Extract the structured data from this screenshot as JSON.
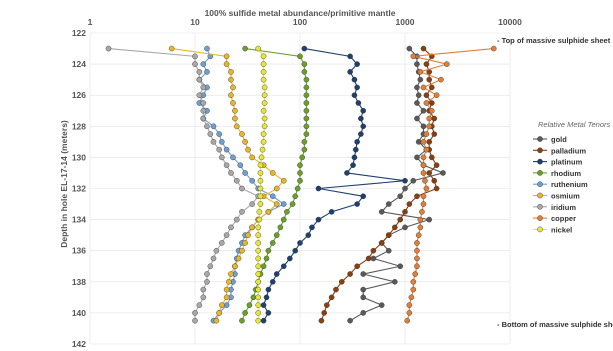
{
  "chart_data": {
    "type": "scatter",
    "title": "100% sulfide metal abundance/primitive mantle",
    "ylabel": "Depth in hole EL-17-14 (meters)",
    "xlabel": "",
    "xscale": "log",
    "xlim": [
      1,
      10000
    ],
    "ylim": [
      142,
      122
    ],
    "x_ticks": [
      "1",
      "10",
      "100",
      "1000",
      "10000"
    ],
    "y_ticks": [
      "122",
      "124",
      "126",
      "128",
      "130",
      "132",
      "134",
      "136",
      "138",
      "140",
      "142"
    ],
    "legend_title": "Relative Metal Tenors",
    "legend_position": "right",
    "annotations": {
      "top": "- Top of massive sulphide sheet",
      "bottom": "- Bottom of massive sulphide sheet"
    },
    "depths": [
      123,
      123.5,
      124,
      124.5,
      125,
      125.5,
      126,
      126.5,
      127,
      127.5,
      128,
      128.5,
      129,
      129.5,
      130,
      130.5,
      131,
      131.5,
      132,
      132.5,
      133,
      133.5,
      134,
      134.5,
      135,
      135.5,
      136,
      136.5,
      137,
      137.5,
      138,
      138.5,
      139,
      139.5,
      140,
      140.5
    ],
    "series": [
      {
        "name": "gold",
        "color": "#5a5a5a",
        "x": [
          1100,
          1300,
          1300,
          1350,
          1400,
          1300,
          1350,
          1300,
          1500,
          1300,
          1500,
          1500,
          1350,
          1600,
          1300,
          1500,
          2300,
          1200,
          1000,
          900,
          700,
          600,
          1700,
          1000,
          700,
          600,
          700,
          500,
          900,
          400,
          800,
          400,
          400,
          600,
          400,
          300
        ]
      },
      {
        "name": "palladium",
        "color": "#8a3f10",
        "x": [
          1500,
          1800,
          1600,
          1700,
          1700,
          1800,
          1600,
          1800,
          1700,
          1900,
          1800,
          1900,
          1700,
          1700,
          1800,
          2000,
          1700,
          1900,
          2000,
          1300,
          1100,
          1000,
          900,
          800,
          700,
          600,
          500,
          450,
          350,
          300,
          250,
          220,
          200,
          180,
          170,
          160
        ]
      },
      {
        "name": "platinum",
        "color": "#1f3f70",
        "x": [
          110,
          300,
          350,
          300,
          330,
          350,
          330,
          360,
          400,
          380,
          400,
          380,
          350,
          340,
          330,
          320,
          280,
          1000,
          150,
          400,
          350,
          200,
          150,
          130,
          120,
          100,
          90,
          80,
          70,
          60,
          55,
          50,
          48,
          45,
          50,
          45
        ]
      },
      {
        "name": "rhodium",
        "color": "#6aa02a",
        "x": [
          30,
          100,
          110,
          110,
          115,
          115,
          115,
          115,
          115,
          115,
          115,
          115,
          110,
          110,
          105,
          100,
          100,
          100,
          95,
          90,
          85,
          75,
          70,
          65,
          60,
          55,
          50,
          48,
          45,
          42,
          40,
          38,
          36,
          33,
          30,
          28
        ]
      },
      {
        "name": "ruthenium",
        "color": "#6f9fd2",
        "x": [
          13,
          14,
          12,
          13,
          11,
          13,
          12,
          11,
          13,
          12,
          15,
          17,
          18,
          20,
          23,
          27,
          30,
          35,
          40,
          55,
          70,
          50,
          40,
          35,
          30,
          28,
          26,
          25,
          24,
          24,
          23,
          22,
          22,
          20,
          17,
          15
        ]
      },
      {
        "name": "osmium",
        "color": "#e8b62a",
        "x": [
          6,
          20,
          20,
          22,
          22,
          23,
          22,
          23,
          24,
          24,
          25,
          28,
          30,
          32,
          35,
          45,
          55,
          70,
          60,
          45,
          60,
          50,
          40,
          35,
          32,
          30,
          28,
          26,
          24,
          22,
          21,
          20,
          20,
          18,
          17,
          16
        ]
      },
      {
        "name": "iridium",
        "color": "#a8a8a8",
        "x": [
          1.5,
          10,
          10,
          11,
          11,
          12,
          11,
          12,
          12,
          12,
          13,
          14,
          15,
          17,
          18,
          20,
          22,
          25,
          28,
          40,
          35,
          28,
          25,
          22,
          20,
          18,
          16,
          15,
          14,
          13,
          13,
          12,
          12,
          11,
          10,
          10
        ]
      },
      {
        "name": "copper",
        "color": "#e07f3a",
        "x": [
          7000,
          1200,
          2500,
          1400,
          2200,
          1500,
          2000,
          1600,
          1800,
          1700,
          1700,
          1600,
          1500,
          1600,
          1500,
          1500,
          1500,
          1550,
          1600,
          1500,
          1500,
          1450,
          1400,
          1400,
          1350,
          1300,
          1300,
          1300,
          1300,
          1250,
          1200,
          1200,
          1150,
          1100,
          1100,
          1050
        ]
      },
      {
        "name": "nickel",
        "color": "#e6e63a",
        "x": [
          40,
          45,
          45,
          45,
          45,
          46,
          46,
          46,
          45,
          46,
          46,
          45,
          45,
          44,
          43,
          42,
          42,
          42,
          42,
          42,
          42,
          41,
          41,
          40,
          40,
          40,
          40,
          40,
          40,
          40,
          40,
          40,
          40,
          40,
          40,
          40
        ]
      }
    ]
  }
}
